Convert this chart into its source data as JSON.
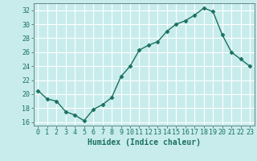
{
  "x": [
    0,
    1,
    2,
    3,
    4,
    5,
    6,
    7,
    8,
    9,
    10,
    11,
    12,
    13,
    14,
    15,
    16,
    17,
    18,
    19,
    20,
    21,
    22,
    23
  ],
  "y": [
    20.5,
    19.3,
    19.0,
    17.5,
    17.0,
    16.2,
    17.8,
    18.5,
    19.5,
    22.5,
    24.0,
    26.3,
    27.0,
    27.5,
    29.0,
    30.0,
    30.5,
    31.3,
    32.3,
    31.8,
    28.5,
    26.0,
    25.0,
    24.0
  ],
  "line_color": "#1a7060",
  "marker": "D",
  "marker_size": 2.5,
  "bg_color": "#c8ecec",
  "grid_color": "#ffffff",
  "xlabel": "Humidex (Indice chaleur)",
  "ylim": [
    15.5,
    33
  ],
  "xlim": [
    -0.5,
    23.5
  ],
  "yticks": [
    16,
    18,
    20,
    22,
    24,
    26,
    28,
    30,
    32
  ],
  "xticks": [
    0,
    1,
    2,
    3,
    4,
    5,
    6,
    7,
    8,
    9,
    10,
    11,
    12,
    13,
    14,
    15,
    16,
    17,
    18,
    19,
    20,
    21,
    22,
    23
  ],
  "tick_fontsize": 6,
  "xlabel_fontsize": 7,
  "line_width": 1.0
}
